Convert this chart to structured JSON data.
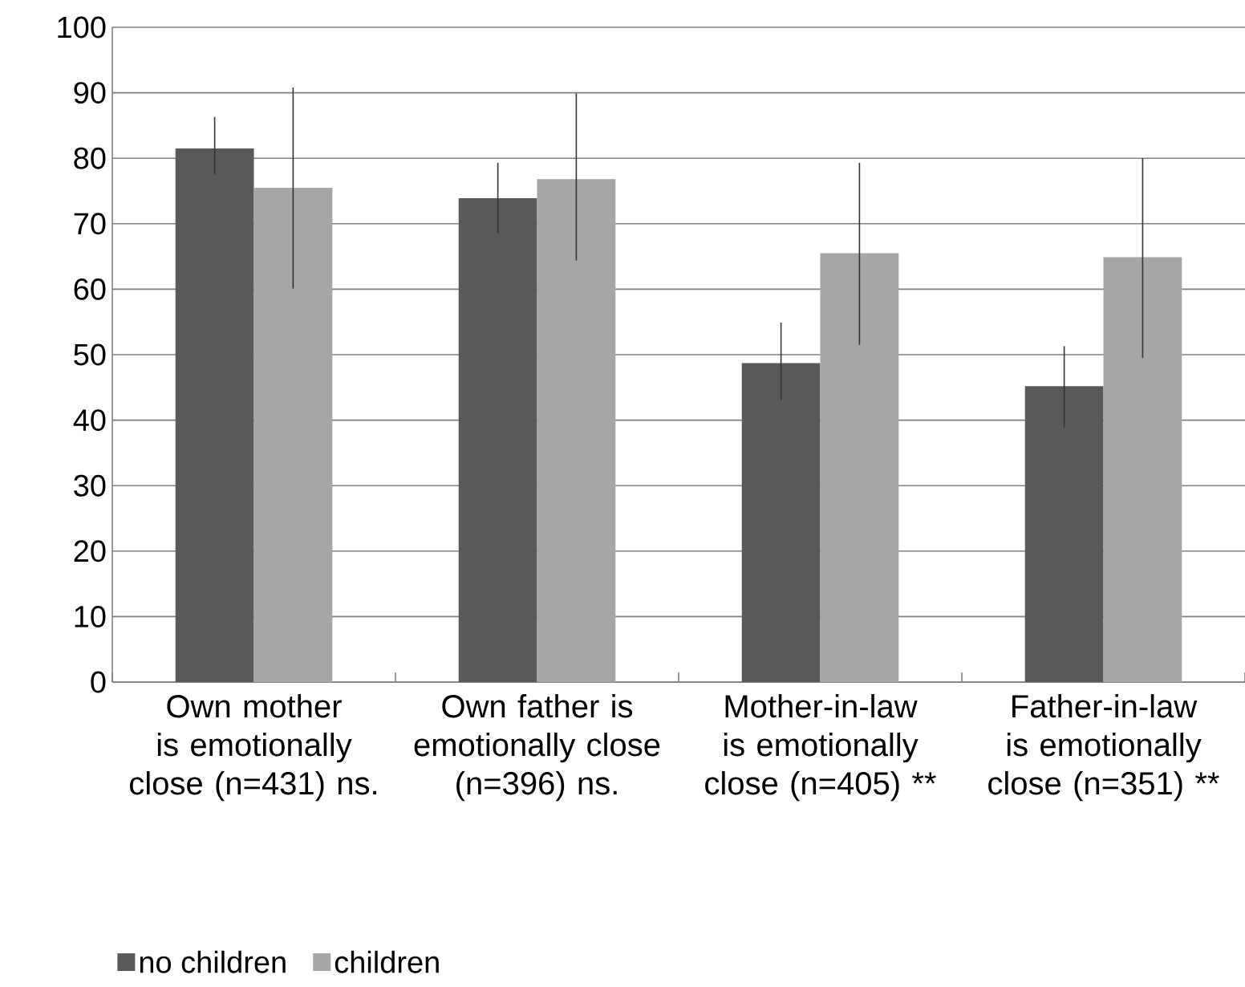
{
  "chart_data": {
    "type": "bar",
    "categories": [
      "Own mother is emotionally close (n=431) ns.",
      "Own father is emotionally close (n=396) ns.",
      "Mother-in-law is emotionally close (n=405) **",
      "Father-in-law is emotionally close (n=351) **"
    ],
    "series": [
      {
        "name": "no children",
        "color": "#595959",
        "values": [
          81.5,
          73.9,
          48.7,
          45.2
        ],
        "errors": [
          [
            77.5,
            86.3
          ],
          [
            68.5,
            79.3
          ],
          [
            43.1,
            54.9
          ],
          [
            38.9,
            51.3
          ]
        ]
      },
      {
        "name": "children",
        "color": "#a6a6a6",
        "values": [
          75.5,
          76.8,
          65.5,
          64.9
        ],
        "errors": [
          [
            60.1,
            90.8
          ],
          [
            64.4,
            89.9
          ],
          [
            51.5,
            79.3
          ],
          [
            49.5,
            80.0
          ]
        ]
      }
    ],
    "ylim": [
      0,
      100
    ],
    "yticks": [
      0,
      10,
      20,
      30,
      40,
      50,
      60,
      70,
      80,
      90,
      100
    ],
    "grid": "y",
    "legend": "bottom"
  }
}
